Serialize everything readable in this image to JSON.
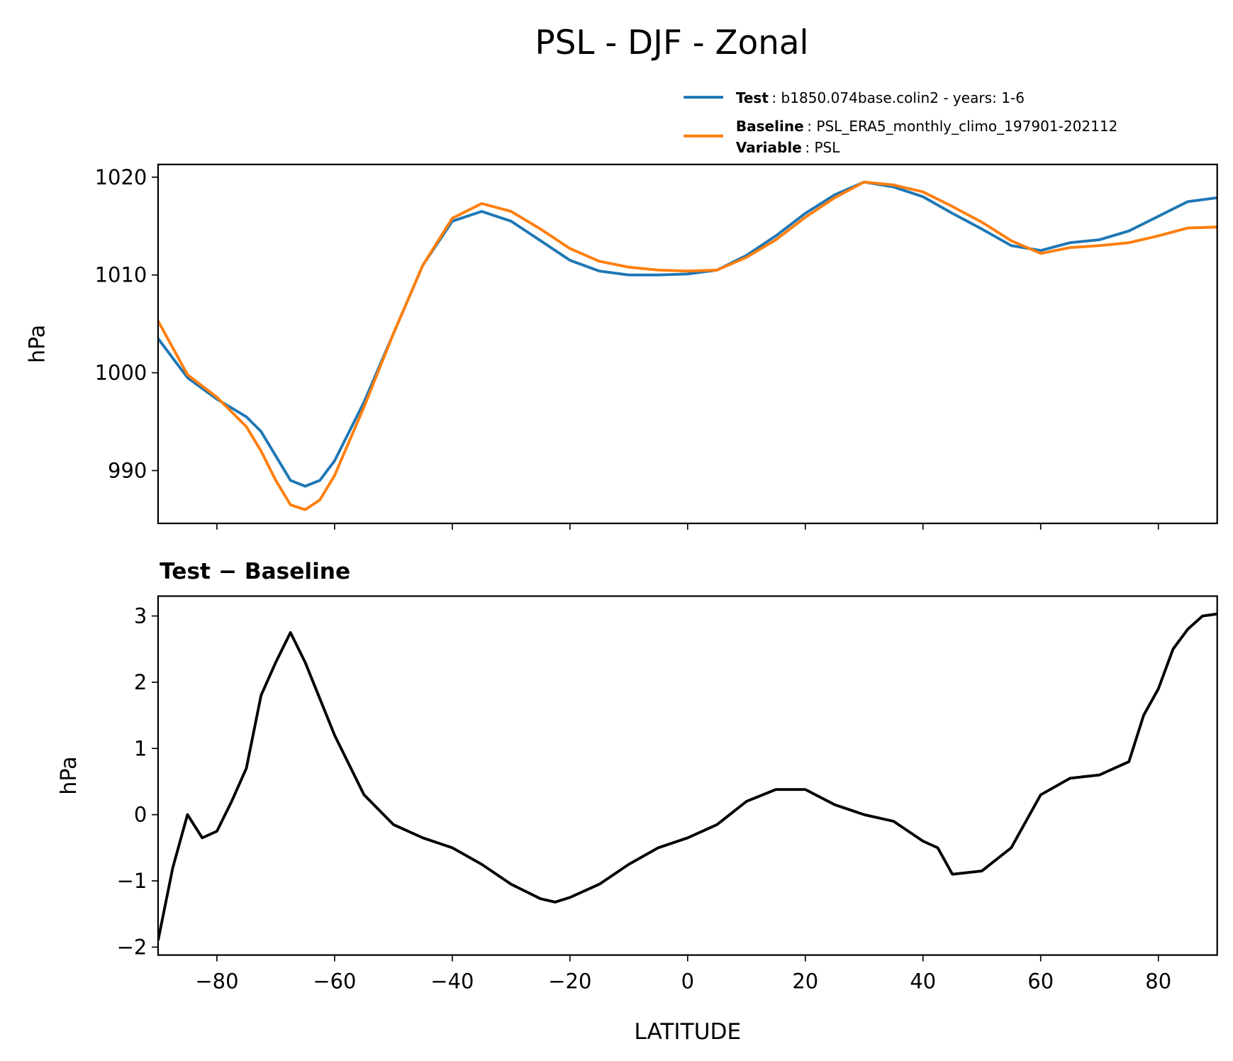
{
  "title": "PSL - DJF - Zonal",
  "chart_data": [
    {
      "type": "line",
      "ylabel": "hPa",
      "x": [
        -90,
        -85,
        -80,
        -75,
        -72.5,
        -70,
        -67.5,
        -65,
        -62.5,
        -60,
        -55,
        -50,
        -45,
        -40,
        -35,
        -30,
        -25,
        -20,
        -15,
        -10,
        -5,
        0,
        5,
        10,
        15,
        20,
        25,
        30,
        35,
        40,
        45,
        50,
        55,
        60,
        65,
        70,
        75,
        80,
        85,
        90
      ],
      "series": [
        {
          "name": "Test",
          "detail": ": b1850.074base.colin2 - years: 1-6",
          "color": "#1f77b4",
          "values": [
            1003.5,
            999.5,
            997.3,
            995.5,
            994,
            991.5,
            989,
            988.4,
            989,
            991,
            997,
            1004,
            1011,
            1015.5,
            1016.5,
            1015.5,
            1013.5,
            1011.5,
            1010.4,
            1010,
            1010,
            1010.1,
            1010.5,
            1012,
            1014,
            1016.3,
            1018.2,
            1019.5,
            1019,
            1018,
            1016.3,
            1014.7,
            1013,
            1012.5,
            1013.3,
            1013.6,
            1014.5,
            1016,
            1017.5,
            1017.9
          ]
        },
        {
          "name": "Baseline",
          "detail": ": PSL_ERA5_monthly_climo_197901-202112",
          "color": "#ff7f0e",
          "values": [
            1005.3,
            999.8,
            997.5,
            994.5,
            992,
            989,
            986.5,
            986,
            987,
            989.5,
            996.5,
            1004,
            1011,
            1015.8,
            1017.3,
            1016.5,
            1014.7,
            1012.7,
            1011.4,
            1010.8,
            1010.5,
            1010.4,
            1010.5,
            1011.8,
            1013.6,
            1015.9,
            1017.9,
            1019.5,
            1019.2,
            1018.5,
            1017,
            1015.4,
            1013.5,
            1012.2,
            1012.8,
            1013,
            1013.3,
            1014,
            1014.8,
            1014.9
          ]
        }
      ],
      "legend_note": {
        "name": "Variable",
        "detail": ": PSL"
      },
      "xlim": [
        -90,
        90
      ],
      "xticks": [
        -80,
        -60,
        -40,
        -20,
        0,
        20,
        40,
        60,
        80
      ],
      "ylim": [
        984.6,
        1021.3
      ],
      "yticks": [
        990,
        1000,
        1010,
        1020
      ]
    },
    {
      "type": "line",
      "title": "Test − Baseline",
      "xlabel": "LATITUDE",
      "ylabel": "hPa",
      "x": [
        -90,
        -87.5,
        -85,
        -82.5,
        -80,
        -77.5,
        -75,
        -72.5,
        -70,
        -67.5,
        -65,
        -60,
        -55,
        -50,
        -45,
        -40,
        -35,
        -30,
        -25,
        -22.5,
        -20,
        -15,
        -10,
        -5,
        0,
        5,
        10,
        15,
        20,
        25,
        30,
        35,
        40,
        42.5,
        45,
        50,
        55,
        60,
        65,
        70,
        75,
        77.5,
        80,
        82.5,
        85,
        87.5,
        90
      ],
      "series": [
        {
          "color": "#000000",
          "values": [
            -1.9,
            -0.8,
            0,
            -0.35,
            -0.25,
            0.2,
            0.7,
            1.8,
            2.3,
            2.75,
            2.3,
            1.2,
            0.3,
            -0.15,
            -0.35,
            -0.5,
            -0.75,
            -1.05,
            -1.27,
            -1.32,
            -1.25,
            -1.05,
            -0.75,
            -0.5,
            -0.35,
            -0.15,
            0.2,
            0.38,
            0.38,
            0.15,
            0,
            -0.1,
            -0.4,
            -0.5,
            -0.9,
            -0.85,
            -0.5,
            0.3,
            0.55,
            0.6,
            0.8,
            1.5,
            1.9,
            2.5,
            2.8,
            3.0,
            3.03
          ]
        }
      ],
      "xlim": [
        -90,
        90
      ],
      "xticks": [
        {
          "value": -80,
          "label": "−80"
        },
        {
          "value": -60,
          "label": "−60"
        },
        {
          "value": -40,
          "label": "−40"
        },
        {
          "value": -20,
          "label": "−20"
        },
        0,
        20,
        40,
        60,
        80
      ],
      "ylim": [
        -2.12,
        3.3
      ],
      "yticks": [
        {
          "value": -2,
          "label": "−2"
        },
        {
          "value": -1,
          "label": "−1"
        },
        0,
        1,
        2,
        3
      ]
    }
  ]
}
